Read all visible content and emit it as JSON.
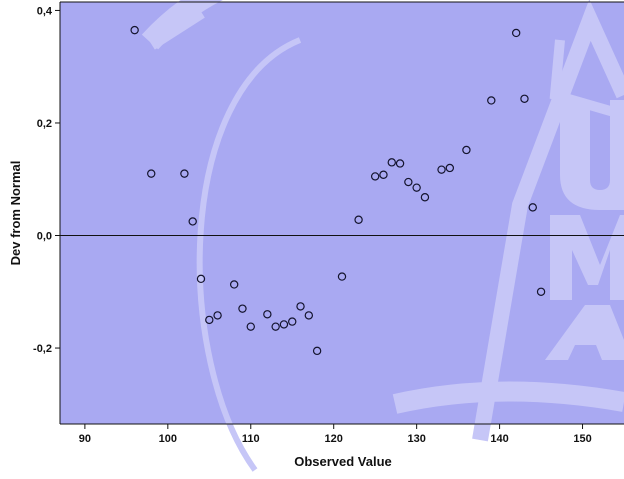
{
  "chart_data": {
    "type": "scatter",
    "xlabel": "Observed Value",
    "ylabel": "Dev from Normal",
    "xlim": [
      87,
      155
    ],
    "ylim": [
      -0.335,
      0.415
    ],
    "x_ticks": [
      90,
      100,
      110,
      120,
      130,
      140,
      150
    ],
    "y_ticks": [
      0.4,
      0.2,
      0.0,
      -0.2
    ],
    "y_tick_labels": [
      "0,4",
      "0,2",
      "0,0",
      "-0,2"
    ],
    "reference_line_y": 0.0,
    "grid": false,
    "legend": "none",
    "colors": {
      "background": "#a9a9f2",
      "watermark": "#c6c6f7",
      "marker_stroke": "#14142e",
      "axis": "#111111"
    },
    "points": [
      {
        "x": 96,
        "y": 0.365
      },
      {
        "x": 98,
        "y": 0.11
      },
      {
        "x": 102,
        "y": 0.11
      },
      {
        "x": 103,
        "y": 0.025
      },
      {
        "x": 104,
        "y": -0.077
      },
      {
        "x": 105,
        "y": -0.15
      },
      {
        "x": 106,
        "y": -0.142
      },
      {
        "x": 108,
        "y": -0.087
      },
      {
        "x": 109,
        "y": -0.13
      },
      {
        "x": 110,
        "y": -0.162
      },
      {
        "x": 112,
        "y": -0.14
      },
      {
        "x": 113,
        "y": -0.162
      },
      {
        "x": 114,
        "y": -0.158
      },
      {
        "x": 115,
        "y": -0.153
      },
      {
        "x": 116,
        "y": -0.126
      },
      {
        "x": 117,
        "y": -0.142
      },
      {
        "x": 118,
        "y": -0.205
      },
      {
        "x": 121,
        "y": -0.073
      },
      {
        "x": 123,
        "y": 0.028
      },
      {
        "x": 125,
        "y": 0.105
      },
      {
        "x": 126,
        "y": 0.108
      },
      {
        "x": 127,
        "y": 0.13
      },
      {
        "x": 128,
        "y": 0.128
      },
      {
        "x": 129,
        "y": 0.095
      },
      {
        "x": 130,
        "y": 0.085
      },
      {
        "x": 131,
        "y": 0.068
      },
      {
        "x": 133,
        "y": 0.117
      },
      {
        "x": 134,
        "y": 0.12
      },
      {
        "x": 136,
        "y": 0.152
      },
      {
        "x": 139,
        "y": 0.24
      },
      {
        "x": 142,
        "y": 0.36
      },
      {
        "x": 143,
        "y": 0.243
      },
      {
        "x": 144,
        "y": 0.05
      },
      {
        "x": 145,
        "y": -0.1
      }
    ]
  }
}
